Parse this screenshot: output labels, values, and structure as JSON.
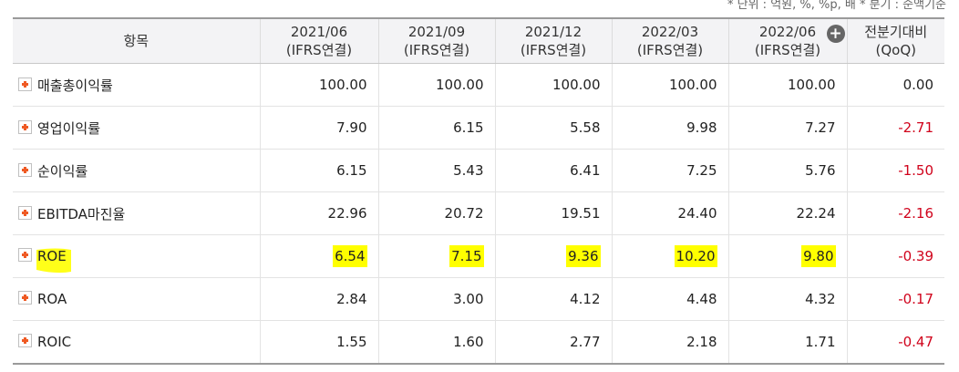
{
  "unit_note": "* 단위 : 억원, %, %p, 배   * 분기 : 순액기준",
  "header": {
    "item": "항목",
    "periods": [
      {
        "date": "2021/06",
        "basis": "(IFRS연결)"
      },
      {
        "date": "2021/09",
        "basis": "(IFRS연결)"
      },
      {
        "date": "2021/12",
        "basis": "(IFRS연결)"
      },
      {
        "date": "2022/03",
        "basis": "(IFRS연결)"
      },
      {
        "date": "2022/06",
        "basis": "(IFRS연결)"
      }
    ],
    "change": {
      "line1": "전분기대비",
      "line2": "(QoQ)"
    },
    "expand_icon": "plus-circle-icon"
  },
  "rows": [
    {
      "name": "매출총이익률",
      "values": [
        "100.00",
        "100.00",
        "100.00",
        "100.00",
        "100.00"
      ],
      "qoq": "0.00"
    },
    {
      "name": "영업이익률",
      "values": [
        "7.90",
        "6.15",
        "5.58",
        "9.98",
        "7.27"
      ],
      "qoq": "-2.71"
    },
    {
      "name": "순이익률",
      "values": [
        "6.15",
        "5.43",
        "6.41",
        "7.25",
        "5.76"
      ],
      "qoq": "-1.50"
    },
    {
      "name": "EBITDA마진율",
      "values": [
        "22.96",
        "20.72",
        "19.51",
        "24.40",
        "22.24"
      ],
      "qoq": "-2.16"
    },
    {
      "name": "ROE",
      "values": [
        "6.54",
        "7.15",
        "9.36",
        "10.20",
        "9.80"
      ],
      "qoq": "-0.39"
    },
    {
      "name": "ROA",
      "values": [
        "2.84",
        "3.00",
        "4.12",
        "4.48",
        "4.32"
      ],
      "qoq": "-0.17"
    },
    {
      "name": "ROIC",
      "values": [
        "1.55",
        "1.60",
        "2.77",
        "2.18",
        "1.71"
      ],
      "qoq": "-0.47"
    }
  ],
  "colors": {
    "negative": "#d0021b",
    "highlight": "#ffff00",
    "expand_icon": "#ef5a24"
  },
  "highlighted_row": "ROE"
}
